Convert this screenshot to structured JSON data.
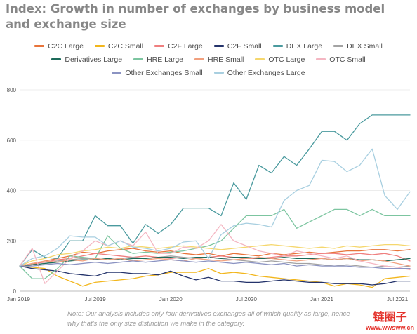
{
  "chart_data": {
    "type": "line",
    "title": "Index: Growth in number of exchanges by business model and exchange size",
    "xlabel": "",
    "ylabel": "",
    "ylim": [
      0,
      800
    ],
    "y_ticks": [
      0,
      200,
      400,
      600,
      800
    ],
    "x_tick_labels": [
      "Jan 2019",
      "Jul 2019",
      "Jan 2020",
      "Jul 2020",
      "Jan 2021",
      "Jul 2021"
    ],
    "x": [
      "2019-01",
      "2019-02",
      "2019-03",
      "2019-04",
      "2019-05",
      "2019-06",
      "2019-07",
      "2019-08",
      "2019-09",
      "2019-10",
      "2019-11",
      "2019-12",
      "2020-01",
      "2020-02",
      "2020-03",
      "2020-04",
      "2020-05",
      "2020-06",
      "2020-07",
      "2020-08",
      "2020-09",
      "2020-10",
      "2020-11",
      "2020-12",
      "2021-01",
      "2021-02",
      "2021-03",
      "2021-04",
      "2021-05",
      "2021-06",
      "2021-07",
      "2021-08"
    ],
    "grid": "horizontal",
    "legend_position": "top",
    "series": [
      {
        "name": "C2C Large",
        "color": "#e8743b",
        "values": [
          100,
          105,
          120,
          130,
          140,
          155,
          150,
          160,
          165,
          170,
          160,
          155,
          160,
          150,
          145,
          150,
          140,
          150,
          145,
          140,
          150,
          145,
          150,
          155,
          150,
          155,
          160,
          160,
          165,
          165,
          160,
          165
        ]
      },
      {
        "name": "C2C Small",
        "color": "#f2b61c",
        "values": [
          100,
          95,
          90,
          60,
          40,
          20,
          35,
          40,
          45,
          50,
          60,
          65,
          75,
          75,
          75,
          90,
          70,
          75,
          70,
          60,
          55,
          50,
          45,
          40,
          35,
          20,
          30,
          25,
          15,
          50,
          55,
          60
        ]
      },
      {
        "name": "C2F Large",
        "color": "#ef7f7f",
        "values": [
          100,
          110,
          115,
          125,
          130,
          140,
          150,
          145,
          140,
          135,
          140,
          135,
          130,
          135,
          130,
          135,
          140,
          135,
          130,
          130,
          135,
          140,
          140,
          145,
          150,
          150,
          145,
          150,
          145,
          150,
          140,
          120
        ]
      },
      {
        "name": "C2F Small",
        "color": "#24336b",
        "values": [
          100,
          90,
          85,
          80,
          70,
          65,
          60,
          75,
          75,
          70,
          70,
          65,
          80,
          60,
          45,
          55,
          40,
          40,
          35,
          35,
          40,
          45,
          40,
          35,
          35,
          30,
          30,
          30,
          25,
          30,
          40,
          40
        ]
      },
      {
        "name": "DEX Large",
        "color": "#4a9a9e",
        "values": [
          100,
          165,
          135,
          130,
          200,
          200,
          300,
          260,
          260,
          190,
          265,
          230,
          265,
          330,
          330,
          330,
          300,
          430,
          365,
          500,
          470,
          535,
          500,
          565,
          635,
          635,
          600,
          665,
          700,
          700,
          700,
          700
        ]
      },
      {
        "name": "DEX Small",
        "color": "#a3a3a3",
        "values": [
          100,
          105,
          110,
          120,
          125,
          130,
          130,
          125,
          130,
          135,
          130,
          135,
          140,
          135,
          130,
          135,
          130,
          125,
          120,
          115,
          120,
          115,
          110,
          110,
          105,
          100,
          105,
          100,
          95,
          100,
          95,
          100
        ]
      },
      {
        "name": "Derivatives Large",
        "color": "#1d6b5a",
        "values": [
          100,
          105,
          110,
          115,
          120,
          125,
          125,
          130,
          125,
          130,
          130,
          135,
          135,
          130,
          135,
          135,
          130,
          135,
          135,
          130,
          130,
          135,
          130,
          130,
          130,
          125,
          130,
          125,
          125,
          120,
          125,
          130
        ]
      },
      {
        "name": "HRE Large",
        "color": "#7cc5a0",
        "values": [
          100,
          50,
          50,
          90,
          140,
          135,
          130,
          220,
          170,
          150,
          155,
          150,
          155,
          160,
          170,
          180,
          200,
          250,
          300,
          300,
          300,
          325,
          250,
          275,
          300,
          325,
          325,
          300,
          325,
          300,
          300,
          300
        ]
      },
      {
        "name": "HRE Small",
        "color": "#f1a07e",
        "values": [
          100,
          110,
          120,
          115,
          125,
          120,
          130,
          125,
          130,
          120,
          125,
          130,
          125,
          120,
          130,
          125,
          120,
          125,
          130,
          135,
          130,
          125,
          120,
          125,
          130,
          125,
          130,
          120,
          125,
          120,
          110,
          100
        ]
      },
      {
        "name": "OTC Large",
        "color": "#f5d76e",
        "values": [
          100,
          120,
          130,
          145,
          150,
          160,
          165,
          175,
          170,
          180,
          175,
          170,
          175,
          180,
          175,
          170,
          165,
          170,
          175,
          180,
          185,
          180,
          175,
          170,
          175,
          170,
          180,
          175,
          180,
          185,
          185,
          180
        ]
      },
      {
        "name": "OTC Small",
        "color": "#f4b6c2",
        "values": [
          100,
          170,
          30,
          80,
          130,
          160,
          200,
          180,
          200,
          180,
          235,
          150,
          150,
          175,
          170,
          200,
          265,
          200,
          180,
          160,
          150,
          140,
          160,
          150,
          140,
          130,
          140,
          120,
          110,
          100,
          95,
          85
        ]
      },
      {
        "name": "Other Exchanges Small",
        "color": "#8b93c2",
        "values": [
          100,
          100,
          105,
          110,
          105,
          110,
          115,
          110,
          115,
          120,
          115,
          120,
          125,
          120,
          115,
          120,
          115,
          110,
          115,
          110,
          105,
          110,
          100,
          105,
          100,
          100,
          100,
          95,
          95,
          90,
          90,
          90
        ]
      },
      {
        "name": "Other Exchanges Large",
        "color": "#a8cfe0",
        "values": [
          100,
          130,
          140,
          170,
          220,
          215,
          215,
          180,
          200,
          175,
          170,
          160,
          170,
          195,
          200,
          130,
          225,
          260,
          270,
          265,
          255,
          360,
          400,
          420,
          520,
          515,
          475,
          500,
          565,
          380,
          325,
          395
        ]
      }
    ]
  },
  "legend_rows": [
    [
      0,
      1,
      2,
      3,
      4,
      5
    ],
    [
      6,
      7,
      8,
      9,
      10
    ],
    [
      11,
      12
    ]
  ],
  "note": "Note: Our analysis includes only four derivatives exchanges all of which qualify as large, hence why that's the only size distinction we make in the category.",
  "watermark": {
    "main": "链圈子",
    "sub": "www.wwsww.cn",
    "color": "#e4322b"
  }
}
